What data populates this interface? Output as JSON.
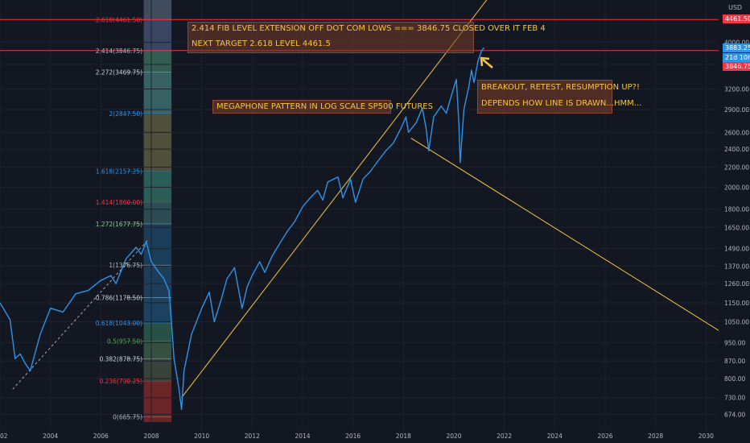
{
  "currency": "USD",
  "chart_data": {
    "type": "line",
    "title": "",
    "xlabel": "",
    "ylabel": "",
    "log_scale": true,
    "x_ticks": [
      "2002",
      "2004",
      "2006",
      "2008",
      "2010",
      "2012",
      "2014",
      "2016",
      "2018",
      "2020",
      "2022",
      "2024",
      "2026",
      "2028",
      "2030"
    ],
    "y_ticks": [
      674,
      730,
      800,
      870,
      950,
      1050,
      1150,
      1260,
      1370,
      1490,
      1650,
      1800,
      2000,
      2200,
      2400,
      2600,
      2900,
      3200,
      3600,
      4000
    ],
    "xlim": [
      2002.0,
      2030.5
    ],
    "ylim": [
      625,
      4900
    ],
    "series": [
      {
        "color": "#2f93e8",
        "points": [
          [
            2002.0,
            1150
          ],
          [
            2002.4,
            1060
          ],
          [
            2002.6,
            880
          ],
          [
            2002.8,
            900
          ],
          [
            2003.0,
            860
          ],
          [
            2003.2,
            830
          ],
          [
            2003.6,
            990
          ],
          [
            2004.0,
            1120
          ],
          [
            2004.5,
            1100
          ],
          [
            2005.0,
            1200
          ],
          [
            2005.5,
            1220
          ],
          [
            2006.0,
            1280
          ],
          [
            2006.4,
            1310
          ],
          [
            2006.6,
            1260
          ],
          [
            2007.0,
            1420
          ],
          [
            2007.4,
            1500
          ],
          [
            2007.6,
            1450
          ],
          [
            2007.8,
            1540
          ],
          [
            2008.0,
            1400
          ],
          [
            2008.3,
            1330
          ],
          [
            2008.5,
            1290
          ],
          [
            2008.7,
            1220
          ],
          [
            2008.8,
            1050
          ],
          [
            2008.9,
            880
          ],
          [
            2009.1,
            760
          ],
          [
            2009.2,
            690
          ],
          [
            2009.3,
            830
          ],
          [
            2009.6,
            990
          ],
          [
            2010.0,
            1120
          ],
          [
            2010.3,
            1210
          ],
          [
            2010.5,
            1050
          ],
          [
            2010.8,
            1180
          ],
          [
            2011.0,
            1290
          ],
          [
            2011.3,
            1360
          ],
          [
            2011.6,
            1120
          ],
          [
            2011.8,
            1240
          ],
          [
            2012.0,
            1310
          ],
          [
            2012.3,
            1400
          ],
          [
            2012.5,
            1330
          ],
          [
            2012.8,
            1440
          ],
          [
            2013.0,
            1500
          ],
          [
            2013.4,
            1620
          ],
          [
            2013.7,
            1700
          ],
          [
            2014.0,
            1820
          ],
          [
            2014.3,
            1900
          ],
          [
            2014.6,
            1970
          ],
          [
            2014.8,
            1880
          ],
          [
            2015.0,
            2050
          ],
          [
            2015.4,
            2100
          ],
          [
            2015.6,
            1900
          ],
          [
            2015.9,
            2080
          ],
          [
            2016.1,
            1860
          ],
          [
            2016.4,
            2080
          ],
          [
            2016.7,
            2160
          ],
          [
            2017.0,
            2270
          ],
          [
            2017.3,
            2380
          ],
          [
            2017.6,
            2470
          ],
          [
            2017.9,
            2650
          ],
          [
            2018.1,
            2800
          ],
          [
            2018.2,
            2600
          ],
          [
            2018.5,
            2720
          ],
          [
            2018.75,
            2920
          ],
          [
            2018.9,
            2650
          ],
          [
            2019.0,
            2380
          ],
          [
            2019.2,
            2800
          ],
          [
            2019.5,
            2950
          ],
          [
            2019.7,
            2850
          ],
          [
            2019.9,
            3100
          ],
          [
            2020.1,
            3350
          ],
          [
            2020.2,
            2700
          ],
          [
            2020.25,
            2250
          ],
          [
            2020.4,
            2900
          ],
          [
            2020.6,
            3250
          ],
          [
            2020.7,
            3500
          ],
          [
            2020.8,
            3300
          ],
          [
            2020.95,
            3650
          ],
          [
            2021.1,
            3846.75
          ],
          [
            2021.2,
            3900
          ]
        ]
      }
    ],
    "fib_levels": [
      {
        "ratio": "0",
        "value": 665.75,
        "label": "0(665.75)",
        "label_color": "#b2b5be",
        "fill": "#7a2828"
      },
      {
        "ratio": "0.236",
        "value": 790.25,
        "label": "0.236(790.25)",
        "label_color": "#f23645",
        "fill": "#3f4a3e"
      },
      {
        "ratio": "0.382",
        "value": 878.75,
        "label": "0.382(878.75)",
        "label_color": "#d1d4dc",
        "fill": "#3c5a45"
      },
      {
        "ratio": "0.5",
        "value": 957.5,
        "label": "0.5(957.50)",
        "label_color": "#4caf50",
        "fill": "#2c5a4d"
      },
      {
        "ratio": "0.618",
        "value": 1043.0,
        "label": "0.618(1043.00)",
        "label_color": "#2f93e8",
        "fill": "#1f4a6a"
      },
      {
        "ratio": "0.786",
        "value": 1178.5,
        "label": "0.786(1178.50)",
        "label_color": "#d1d4dc",
        "fill": "#1f4563"
      },
      {
        "ratio": "1",
        "value": 1376.75,
        "label": "1(1376.75)",
        "label_color": "#b2b5be",
        "fill": "#1e4464"
      },
      {
        "ratio": "1.272",
        "value": 1677.75,
        "label": "1.272(1677.75)",
        "label_color": "#8bd18b",
        "fill": "#31555a"
      },
      {
        "ratio": "1.414",
        "value": 1860.0,
        "label": "1.414(1860.00)",
        "label_color": "#f23645",
        "fill": "#2f6a5e"
      },
      {
        "ratio": "1.618",
        "value": 2157.25,
        "label": "1.618(2157.25)",
        "label_color": "#2f93e8",
        "fill": "#5a5a3e"
      },
      {
        "ratio": "2",
        "value": 2847.5,
        "label": "2(2847.50)",
        "label_color": "#2f93e8",
        "fill": "#3f6e70"
      },
      {
        "ratio": "2.272",
        "value": 3469.75,
        "label": "2.272(3469.75)",
        "label_color": "#d1d4dc",
        "fill": "#3a6a5a"
      },
      {
        "ratio": "2.414",
        "value": 3846.75,
        "label": "2.414(3846.75)",
        "label_color": "#b2b5be",
        "fill": "#3f4e6e"
      },
      {
        "ratio": "2.618",
        "value": 4461.5,
        "label": "2.618(4461.50)",
        "label_color": "#f23645",
        "fill": "#4a5568"
      }
    ],
    "trend_lines": [
      {
        "color": "#f5c542",
        "from": [
          2009.2,
          730
        ],
        "to": [
          2021.3,
          4900
        ]
      },
      {
        "color": "#f5c542",
        "from": [
          2018.3,
          2530
        ],
        "to": [
          2030.6,
          1000
        ]
      }
    ],
    "dashed_line": {
      "color": "#aaaaaa",
      "from": [
        2002.5,
        760
      ],
      "to": [
        2007.9,
        1560
      ]
    },
    "horizontal_lines": [
      {
        "value": 4461.5,
        "color": "#f23645"
      },
      {
        "value": 3846.75,
        "color": "#f23645"
      }
    ]
  },
  "annotations": {
    "fib_note_line1": "2.414 FIB LEVEL EXTENSION OFF DOT COM LOWS  === 3846.75 CLOSED OVER IT FEB 4",
    "fib_note_line2": "NEXT TARGET 2.618 LEVEL 4461.5",
    "megaphone": "MEGAPHONE PATTERN IN LOG SCALE SP500 FUTURES",
    "breakout_line1": "BREAKOUT, RETEST, RESUMPTION UP?!",
    "breakout_line2": "DEPENDS HOW LINE IS DRAWN...HMM..."
  },
  "price_labels": [
    {
      "text": "4461.50",
      "color": "#f23645"
    },
    {
      "text": "3883.25",
      "color": "#2f93e8"
    },
    {
      "text": "21d 10h",
      "color": "#2f93e8"
    },
    {
      "text": "3846.75",
      "color": "#f23645"
    }
  ]
}
